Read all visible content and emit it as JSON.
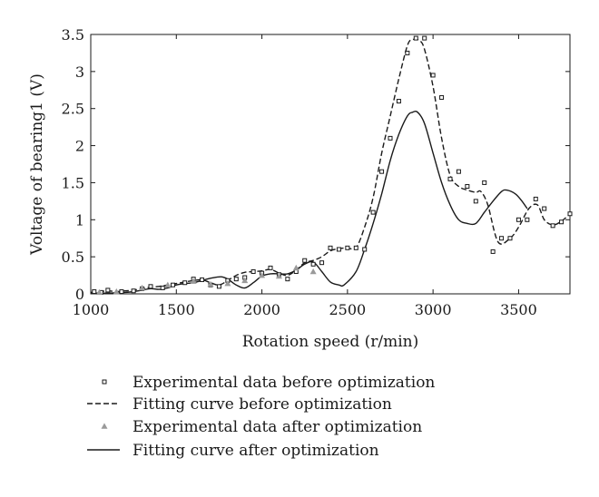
{
  "chart_data": {
    "type": "line",
    "title": "",
    "xlabel": "Rotation speed (r/min)",
    "ylabel": "Voltage of bearing1 (V)",
    "xlim": [
      1000,
      3800
    ],
    "ylim": [
      0,
      3.5
    ],
    "xticks": [
      1000,
      1500,
      2000,
      2500,
      3000,
      3500
    ],
    "yticks": [
      0,
      0.5,
      1,
      1.5,
      2,
      2.5,
      3,
      3.5
    ],
    "xtick_labels": [
      "1000",
      "1500",
      "2000",
      "2500",
      "3000",
      "3500"
    ],
    "ytick_labels": [
      "0",
      "0.5",
      "1",
      "1.5",
      "2",
      "2.5",
      "3",
      "3.5"
    ],
    "grid": false,
    "legend_position": "below",
    "series": [
      {
        "name": "Experimental data before optimization",
        "kind": "scatter",
        "marker": "square",
        "color": "#1a1a1a",
        "x": [
          1020,
          1060,
          1100,
          1180,
          1250,
          1300,
          1350,
          1420,
          1480,
          1550,
          1600,
          1650,
          1700,
          1750,
          1800,
          1850,
          1900,
          1950,
          2000,
          2050,
          2100,
          2150,
          2200,
          2250,
          2300,
          2350,
          2400,
          2450,
          2500,
          2550,
          2600,
          2650,
          2700,
          2750,
          2800,
          2850,
          2900,
          2950,
          3000,
          3050,
          3100,
          3150,
          3200,
          3250,
          3300,
          3350,
          3400,
          3450,
          3500,
          3550,
          3600,
          3650,
          3700,
          3750,
          3800
        ],
        "y": [
          0.03,
          0.02,
          0.05,
          0.03,
          0.04,
          0.07,
          0.1,
          0.08,
          0.12,
          0.15,
          0.2,
          0.19,
          0.12,
          0.1,
          0.18,
          0.2,
          0.22,
          0.3,
          0.28,
          0.35,
          0.26,
          0.2,
          0.3,
          0.45,
          0.4,
          0.42,
          0.62,
          0.6,
          0.62,
          0.62,
          0.6,
          1.1,
          1.65,
          2.1,
          2.6,
          3.25,
          3.45,
          3.45,
          2.95,
          2.65,
          1.55,
          1.65,
          1.45,
          1.25,
          1.5,
          0.57,
          0.75,
          0.75,
          1.0,
          1.0,
          1.28,
          1.15,
          0.92,
          0.97,
          1.08
        ]
      },
      {
        "name": "Fitting curve before optimization",
        "kind": "line",
        "dash": "dashed",
        "color": "#1a1a1a",
        "x": [
          1000,
          1050,
          1100,
          1150,
          1200,
          1250,
          1300,
          1350,
          1400,
          1450,
          1500,
          1550,
          1600,
          1650,
          1700,
          1750,
          1800,
          1850,
          1900,
          1950,
          2000,
          2050,
          2100,
          2150,
          2200,
          2250,
          2300,
          2350,
          2400,
          2450,
          2500,
          2550,
          2600,
          2650,
          2700,
          2750,
          2800,
          2850,
          2880,
          2920,
          2950,
          3000,
          3050,
          3100,
          3150,
          3200,
          3250,
          3280,
          3320,
          3380,
          3450,
          3500,
          3560,
          3610,
          3650,
          3700,
          3750,
          3800
        ],
        "y": [
          0.02,
          0.03,
          0.04,
          0.03,
          0.04,
          0.05,
          0.07,
          0.09,
          0.1,
          0.12,
          0.14,
          0.16,
          0.18,
          0.19,
          0.15,
          0.12,
          0.18,
          0.25,
          0.29,
          0.3,
          0.31,
          0.33,
          0.28,
          0.25,
          0.32,
          0.42,
          0.45,
          0.5,
          0.58,
          0.61,
          0.62,
          0.62,
          0.9,
          1.3,
          1.9,
          2.4,
          2.9,
          3.35,
          3.43,
          3.42,
          3.3,
          2.8,
          2.1,
          1.6,
          1.45,
          1.4,
          1.37,
          1.38,
          1.2,
          0.7,
          0.75,
          0.9,
          1.15,
          1.2,
          1.0,
          0.93,
          0.98,
          1.08
        ]
      },
      {
        "name": "Experimental data after optimization",
        "kind": "scatter",
        "marker": "triangle",
        "color": "#9a9a9a",
        "x": [
          1050,
          1150,
          1300,
          1450,
          1600,
          1700,
          1800,
          1900,
          2000,
          2100,
          2200,
          2300
        ],
        "y": [
          0.02,
          0.03,
          0.08,
          0.12,
          0.17,
          0.13,
          0.14,
          0.18,
          0.25,
          0.24,
          0.35,
          0.3
        ]
      },
      {
        "name": "Fitting curve after optimization",
        "kind": "line",
        "dash": "solid",
        "color": "#1a1a1a",
        "x": [
          1000,
          1100,
          1200,
          1250,
          1300,
          1350,
          1400,
          1450,
          1500,
          1550,
          1600,
          1650,
          1700,
          1760,
          1800,
          1850,
          1900,
          1950,
          2000,
          2050,
          2100,
          2150,
          2200,
          2250,
          2300,
          2350,
          2400,
          2450,
          2480,
          2550,
          2600,
          2650,
          2700,
          2750,
          2800,
          2850,
          2880,
          2910,
          2950,
          3000,
          3050,
          3100,
          3150,
          3200,
          3250,
          3300,
          3350,
          3400,
          3430,
          3480,
          3520,
          3550
        ],
        "y": [
          0.01,
          0.01,
          0.02,
          0.03,
          0.05,
          0.07,
          0.06,
          0.08,
          0.12,
          0.14,
          0.15,
          0.18,
          0.21,
          0.23,
          0.2,
          0.12,
          0.08,
          0.15,
          0.24,
          0.27,
          0.27,
          0.27,
          0.32,
          0.4,
          0.43,
          0.3,
          0.16,
          0.12,
          0.12,
          0.3,
          0.6,
          0.95,
          1.35,
          1.8,
          2.15,
          2.4,
          2.45,
          2.45,
          2.3,
          1.9,
          1.5,
          1.2,
          1.0,
          0.95,
          0.95,
          1.1,
          1.25,
          1.38,
          1.4,
          1.35,
          1.25,
          1.15
        ]
      }
    ]
  }
}
